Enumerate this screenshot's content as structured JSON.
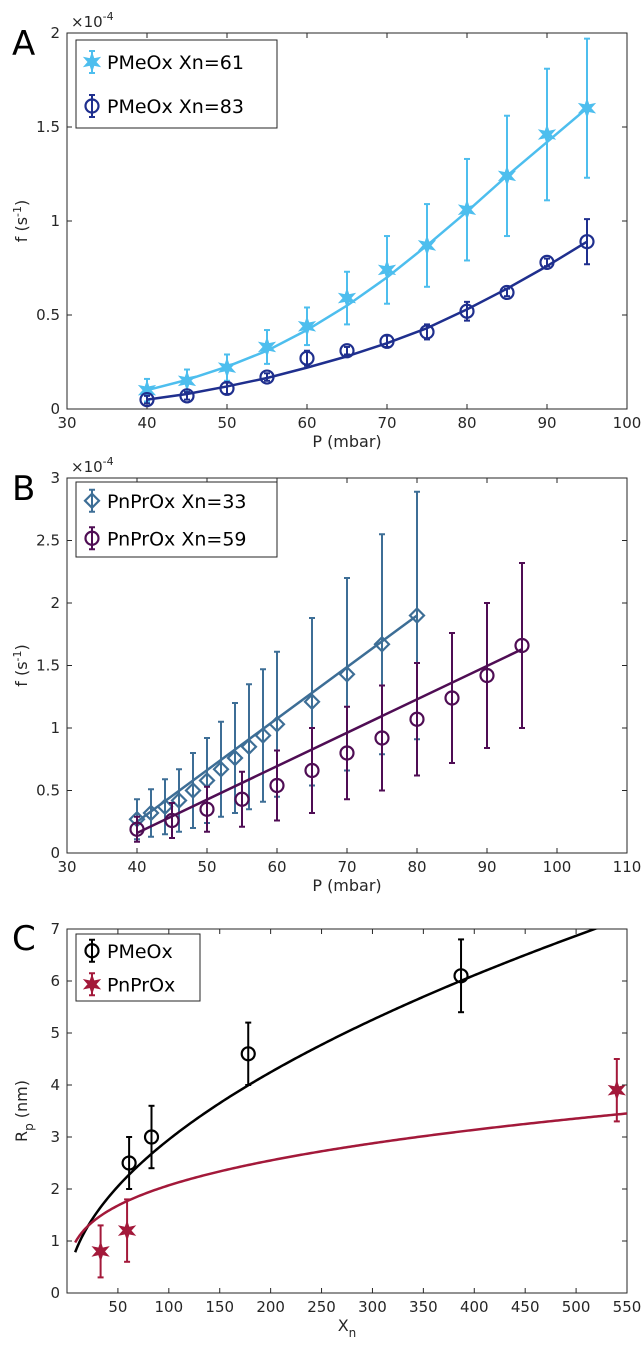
{
  "colors": {
    "pmeox61": "#4DBEEE",
    "pmeox83": "#1F2F8E",
    "pnprox33": "#3D6E96",
    "pnprox59": "#4F0D54",
    "pmeox": "#000000",
    "pnprox": "#A3193A"
  },
  "chart_data": [
    {
      "panel": "A",
      "type": "line",
      "xlabel": "P (mbar)",
      "ylabel": "f (s-1)",
      "ylabel_main": "f (s",
      "ylabel_sup": "-1",
      "ylabel_tail": ")",
      "scale_base": "×10",
      "scale_exp": "-4",
      "xlim": [
        30,
        100
      ],
      "ylim": [
        0,
        2
      ],
      "xticks": [
        30,
        40,
        50,
        60,
        70,
        80,
        90,
        100
      ],
      "yticks": [
        0,
        0.5,
        1,
        1.5,
        2
      ],
      "ytick_labels": [
        "0",
        "0.5",
        "1",
        "1.5",
        "2"
      ],
      "legend_position": "top-left",
      "series": [
        {
          "name": "PMeOx Xn=61",
          "marker": "star",
          "color_key": "pmeox61",
          "x": [
            40,
            45,
            50,
            55,
            60,
            65,
            70,
            75,
            80,
            85,
            90,
            95
          ],
          "y": [
            0.1,
            0.15,
            0.22,
            0.33,
            0.44,
            0.59,
            0.74,
            0.87,
            1.06,
            1.24,
            1.46,
            1.6
          ],
          "err": [
            0.06,
            0.06,
            0.07,
            0.09,
            0.1,
            0.14,
            0.18,
            0.22,
            0.27,
            0.32,
            0.35,
            0.37
          ],
          "fit_x": [
            40,
            45,
            50,
            55,
            60,
            65,
            70,
            75,
            80,
            85,
            90,
            95
          ],
          "fit_y": [
            0.1,
            0.155,
            0.225,
            0.31,
            0.42,
            0.55,
            0.7,
            0.87,
            1.05,
            1.24,
            1.42,
            1.6
          ]
        },
        {
          "name": "PMeOx Xn=83",
          "marker": "circle",
          "color_key": "pmeox83",
          "x": [
            40,
            45,
            50,
            55,
            60,
            65,
            70,
            75,
            80,
            85,
            90,
            95
          ],
          "y": [
            0.05,
            0.07,
            0.11,
            0.17,
            0.27,
            0.31,
            0.36,
            0.41,
            0.52,
            0.62,
            0.78,
            0.89
          ],
          "err": [
            0.02,
            0.02,
            0.03,
            0.02,
            0.04,
            0.02,
            0.03,
            0.04,
            0.05,
            0.02,
            0.02,
            0.12
          ],
          "fit_x": [
            40,
            45,
            50,
            55,
            60,
            65,
            70,
            75,
            80,
            85,
            90,
            95
          ],
          "fit_y": [
            0.05,
            0.08,
            0.12,
            0.165,
            0.22,
            0.28,
            0.35,
            0.43,
            0.53,
            0.64,
            0.76,
            0.89
          ]
        }
      ]
    },
    {
      "panel": "B",
      "type": "line",
      "xlabel": "P (mbar)",
      "ylabel": "f (s-1)",
      "ylabel_main": "f (s",
      "ylabel_sup": "-1",
      "ylabel_tail": ")",
      "scale_base": "×10",
      "scale_exp": "-4",
      "xlim": [
        30,
        110
      ],
      "ylim": [
        0,
        3
      ],
      "xticks": [
        30,
        40,
        50,
        60,
        70,
        80,
        90,
        100,
        110
      ],
      "yticks": [
        0,
        0.5,
        1,
        1.5,
        2,
        2.5,
        3
      ],
      "ytick_labels": [
        "0",
        "0.5",
        "1",
        "1.5",
        "2",
        "2.5",
        "3"
      ],
      "legend_position": "top-left",
      "series": [
        {
          "name": "PnPrOx Xn=33",
          "marker": "diamond",
          "color_key": "pnprox33",
          "x": [
            40,
            42,
            44,
            46,
            48,
            50,
            52,
            54,
            56,
            58,
            60,
            65,
            70,
            75,
            80
          ],
          "y": [
            0.27,
            0.32,
            0.37,
            0.42,
            0.5,
            0.58,
            0.67,
            0.76,
            0.85,
            0.94,
            1.03,
            1.21,
            1.43,
            1.67,
            1.9
          ],
          "err": [
            0.16,
            0.19,
            0.22,
            0.25,
            0.3,
            0.34,
            0.38,
            0.44,
            0.5,
            0.53,
            0.58,
            0.67,
            0.77,
            0.88,
            0.99
          ],
          "fit_x": [
            40,
            80
          ],
          "fit_y": [
            0.25,
            1.9
          ]
        },
        {
          "name": "PnPrOx Xn=59",
          "marker": "circle",
          "color_key": "pnprox59",
          "x": [
            40,
            45,
            50,
            55,
            60,
            65,
            70,
            75,
            80,
            85,
            90,
            95
          ],
          "y": [
            0.19,
            0.26,
            0.35,
            0.43,
            0.54,
            0.66,
            0.8,
            0.92,
            1.07,
            1.24,
            1.42,
            1.66
          ],
          "err": [
            0.1,
            0.14,
            0.18,
            0.22,
            0.28,
            0.34,
            0.37,
            0.42,
            0.45,
            0.52,
            0.58,
            0.66
          ],
          "fit_x": [
            40,
            95
          ],
          "fit_y": [
            0.16,
            1.63
          ]
        }
      ]
    },
    {
      "panel": "C",
      "type": "scatter",
      "xlabel": "Xn",
      "xlabel_main": "X",
      "xlabel_sub": "n",
      "ylabel": "Rp (nm)",
      "ylabel_main": "R",
      "ylabel_sub": "p",
      "ylabel_tail": " (nm)",
      "xlim": [
        0,
        550
      ],
      "ylim": [
        0,
        7
      ],
      "xticks": [
        50,
        100,
        150,
        200,
        250,
        300,
        350,
        400,
        450,
        500,
        550
      ],
      "yticks": [
        0,
        1,
        2,
        3,
        4,
        5,
        6,
        7
      ],
      "ytick_labels": [
        "0",
        "1",
        "2",
        "3",
        "4",
        "5",
        "6",
        "7"
      ],
      "legend_position": "top-left",
      "series": [
        {
          "name": "PMeOx",
          "marker": "circle",
          "color_key": "pmeox",
          "x": [
            61,
            83,
            178,
            387
          ],
          "y": [
            2.5,
            3.0,
            4.6,
            6.1
          ],
          "err": [
            0.5,
            0.6,
            0.6,
            0.7
          ],
          "fit": "power",
          "fit_a": 0.263,
          "fit_b": 0.525
        },
        {
          "name": "PnPrOx",
          "marker": "star",
          "color_key": "pnprox",
          "x": [
            33,
            59,
            540
          ],
          "y": [
            0.8,
            1.2,
            3.9
          ],
          "err": [
            0.5,
            0.6,
            0.6
          ],
          "fit": "power",
          "fit_a": 0.52,
          "fit_b": 0.3
        }
      ]
    }
  ],
  "panel_labels": [
    "A",
    "B",
    "C"
  ]
}
